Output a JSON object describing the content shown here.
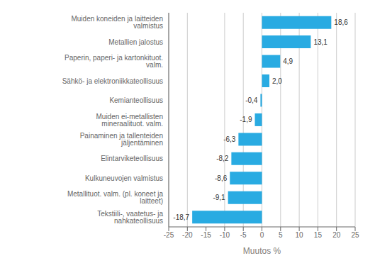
{
  "chart_data": {
    "type": "bar",
    "orientation": "horizontal",
    "categories": [
      "Tekstiili-, vaatetus- ja nahkateollisuus",
      "Metallituot. valm. (pl. koneet ja laitteet)",
      "Kulkuneuvojen valmistus",
      "Elintarviketeollisuus",
      "Painaminen ja tallenteiden jäljentäminen",
      "Muiden ei-metallisten mineraalituot. valm.",
      "Kemianteollisuus",
      "Sähkö- ja elektroniikkateollisuus",
      "Paperin, paperi- ja kartonkituot. valm.",
      "Metallien jalostus",
      "Muiden koneiden ja laitteiden valmistus"
    ],
    "values": [
      -18.7,
      -9.1,
      -8.6,
      -8.2,
      -6.3,
      -1.9,
      -0.4,
      2.0,
      4.9,
      13.1,
      18.6
    ],
    "value_labels": [
      "-18,7",
      "-9,1",
      "-8,6",
      "-8,2",
      "-6,3",
      "-1,9",
      "-0,4",
      "2,0",
      "4,9",
      "13,1",
      "18,6"
    ],
    "color": "#29abe2",
    "xlabel": "Muutos %",
    "xlim": [
      -25,
      25
    ],
    "xticks": [
      -25,
      -20,
      -15,
      -10,
      -5,
      0,
      5,
      10,
      15,
      20,
      25
    ],
    "grid": true,
    "data_labels": true
  }
}
